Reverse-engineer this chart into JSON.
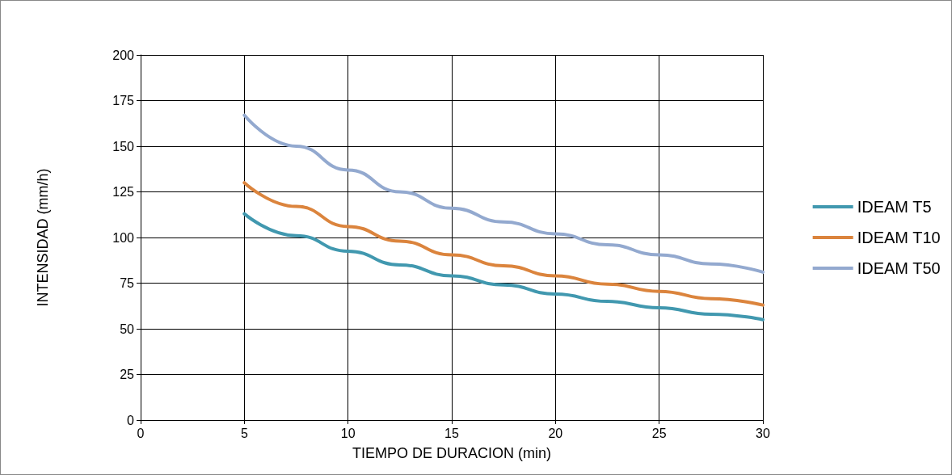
{
  "chart_data": {
    "type": "line",
    "xlabel": "TIEMPO DE DURACION (min)",
    "ylabel": "INTENSIDAD (mm/h)",
    "x": [
      5,
      7.5,
      10,
      12.5,
      15,
      17.5,
      20,
      22.5,
      25,
      27.5,
      30
    ],
    "series": [
      {
        "name": "IDEAM T5",
        "color": "#4198af",
        "values": [
          113,
          101,
          92.5,
          85,
          79,
          74,
          69,
          65,
          61.5,
          58,
          55
        ]
      },
      {
        "name": "IDEAM T10",
        "color": "#db843d",
        "values": [
          130,
          117,
          106,
          98,
          90.5,
          84.5,
          79,
          74.5,
          70.5,
          66.5,
          63
        ]
      },
      {
        "name": "IDEAM T50",
        "color": "#93a9cf",
        "values": [
          167,
          150,
          137,
          125,
          116,
          108.5,
          102,
          96,
          90.5,
          85.5,
          81
        ]
      }
    ],
    "xlim": [
      0,
      30
    ],
    "xticks": [
      0,
      5,
      10,
      15,
      20,
      25,
      30
    ],
    "ylim": [
      0,
      200
    ],
    "yticks": [
      0,
      25,
      50,
      75,
      100,
      125,
      150,
      175,
      200
    ],
    "grid": true,
    "legend": "right",
    "marker": "none",
    "line_style": "solid"
  }
}
